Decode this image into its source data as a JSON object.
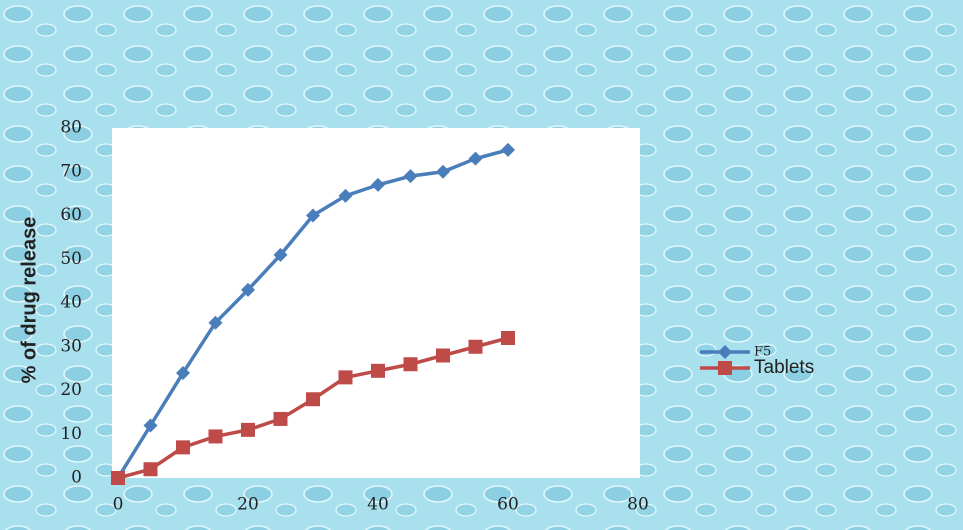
{
  "chart_data": {
    "type": "line",
    "ylabel": "% of drug release",
    "x": [
      0,
      5,
      10,
      15,
      20,
      25,
      30,
      35,
      40,
      45,
      50,
      55,
      60
    ],
    "series": [
      {
        "name": "F5",
        "color": "#4a7ebb",
        "marker": "diamond",
        "values": [
          0,
          12,
          24,
          35.5,
          43,
          51,
          60,
          64.5,
          67,
          69,
          70,
          73,
          75
        ]
      },
      {
        "name": "Tablets",
        "color": "#be4b48",
        "marker": "square",
        "values": [
          0,
          2,
          7,
          9.5,
          11,
          13.5,
          18,
          23,
          24.5,
          26,
          28,
          30,
          32
        ]
      }
    ],
    "xlim": [
      0,
      80
    ],
    "xticks": [
      0,
      20,
      40,
      60,
      80
    ],
    "ylim": [
      0,
      80
    ],
    "yticks": [
      0,
      10,
      20,
      30,
      40,
      50,
      60,
      70,
      80
    ],
    "grid": false,
    "legend": "right"
  }
}
